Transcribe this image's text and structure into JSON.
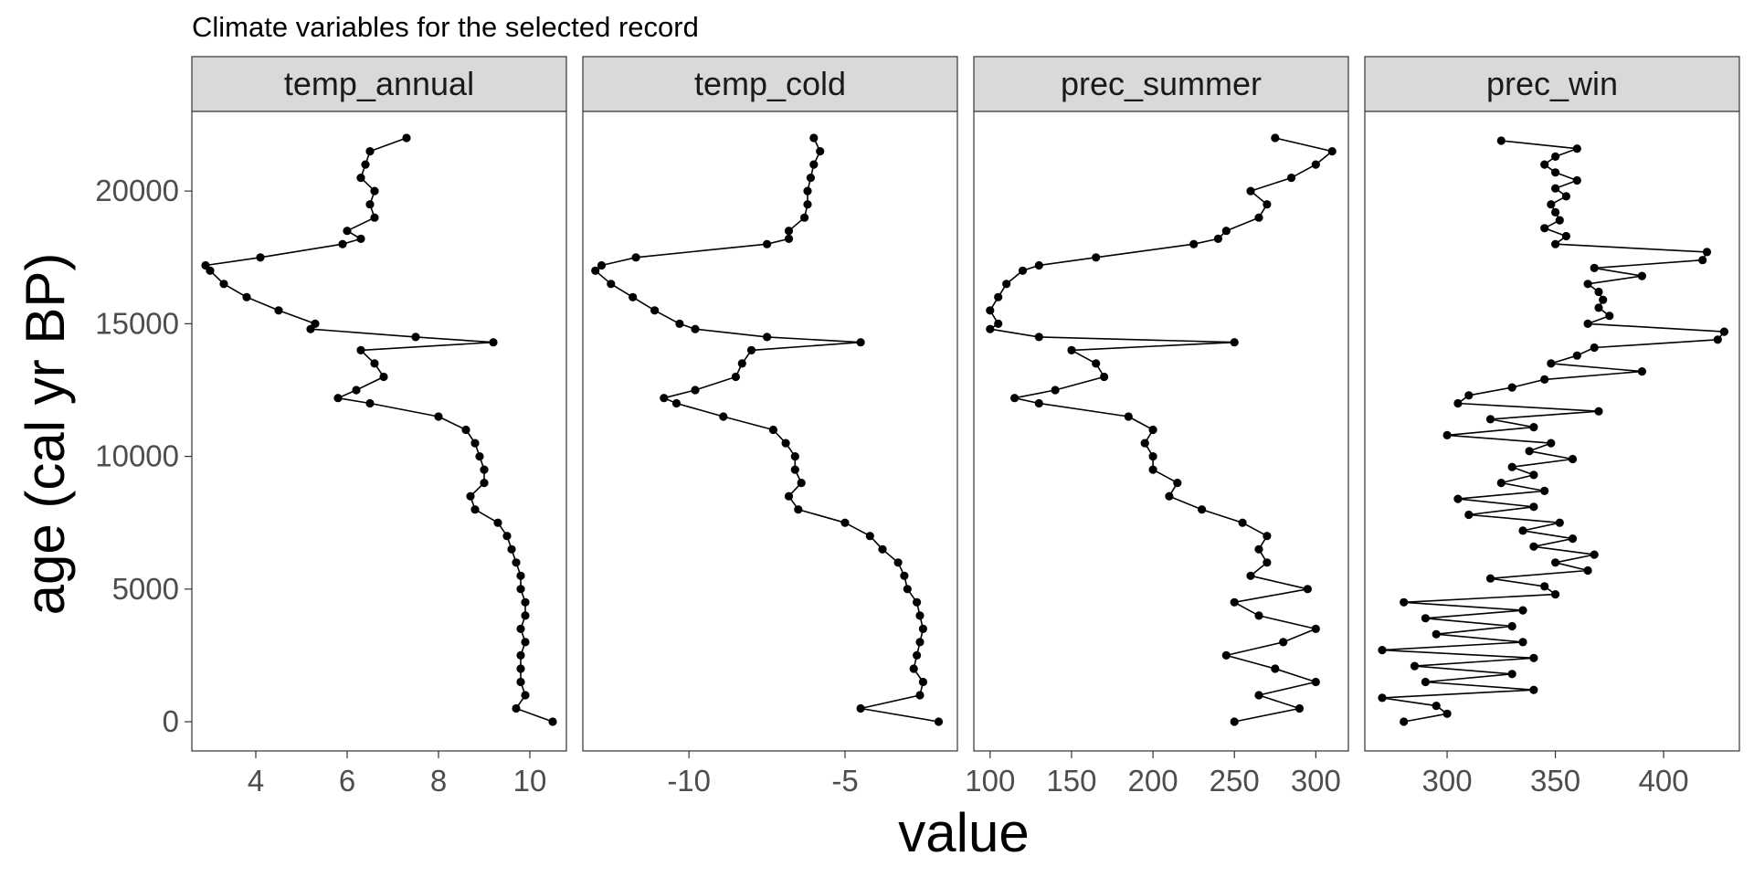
{
  "chart_data": {
    "type": "line",
    "title": "Climate variables for the selected record",
    "xlabel": "value",
    "ylabel": "age (cal yr BP)",
    "y_reversed": true,
    "ylim": [
      23000,
      -1100
    ],
    "yticks": [
      0,
      5000,
      10000,
      15000,
      20000
    ],
    "grid": false,
    "markers": true,
    "panels": [
      {
        "name": "temp_annual",
        "xlim": [
          2.6,
          10.8
        ],
        "xticks": [
          4,
          6,
          8,
          10
        ],
        "ages": [
          0,
          500,
          1000,
          1500,
          2000,
          2500,
          3000,
          3500,
          4000,
          4500,
          5000,
          5500,
          6000,
          6500,
          7000,
          7500,
          8000,
          8500,
          9000,
          9500,
          10000,
          10500,
          11000,
          11500,
          12000,
          12200,
          12500,
          13000,
          13500,
          14000,
          14300,
          14500,
          14800,
          15000,
          15500,
          16000,
          16500,
          17000,
          17200,
          17500,
          18000,
          18200,
          18500,
          19000,
          19500,
          20000,
          20500,
          21000,
          21500,
          22000
        ],
        "values": [
          10.5,
          9.7,
          9.9,
          9.8,
          9.8,
          9.8,
          9.9,
          9.8,
          9.9,
          9.9,
          9.8,
          9.8,
          9.7,
          9.6,
          9.5,
          9.3,
          8.8,
          8.7,
          9.0,
          9.0,
          8.9,
          8.8,
          8.6,
          8.0,
          6.5,
          5.8,
          6.2,
          6.8,
          6.6,
          6.3,
          9.2,
          7.5,
          5.2,
          5.3,
          4.5,
          3.8,
          3.3,
          3.0,
          2.9,
          4.1,
          5.9,
          6.3,
          6.0,
          6.6,
          6.5,
          6.6,
          6.3,
          6.4,
          6.5,
          7.3
        ]
      },
      {
        "name": "temp_cold",
        "xlim": [
          -13.4,
          -1.4
        ],
        "xticks": [
          -10,
          -5
        ],
        "ages": [
          0,
          500,
          1000,
          1500,
          2000,
          2500,
          3000,
          3500,
          4000,
          4500,
          5000,
          5500,
          6000,
          6500,
          7000,
          7500,
          8000,
          8500,
          9000,
          9500,
          10000,
          10500,
          11000,
          11500,
          12000,
          12200,
          12500,
          13000,
          13500,
          14000,
          14300,
          14500,
          14800,
          15000,
          15500,
          16000,
          16500,
          17000,
          17200,
          17500,
          18000,
          18200,
          18500,
          19000,
          19500,
          20000,
          20500,
          21000,
          21500,
          22000
        ],
        "values": [
          -2.0,
          -4.5,
          -2.6,
          -2.5,
          -2.8,
          -2.7,
          -2.6,
          -2.5,
          -2.6,
          -2.7,
          -3.0,
          -3.1,
          -3.3,
          -3.8,
          -4.2,
          -5.0,
          -6.5,
          -6.8,
          -6.4,
          -6.6,
          -6.6,
          -6.9,
          -7.3,
          -8.9,
          -10.4,
          -10.8,
          -9.8,
          -8.5,
          -8.3,
          -8.0,
          -4.5,
          -7.5,
          -9.8,
          -10.3,
          -11.1,
          -11.8,
          -12.5,
          -13.0,
          -12.8,
          -11.7,
          -7.5,
          -6.8,
          -6.8,
          -6.3,
          -6.2,
          -6.2,
          -6.1,
          -6.0,
          -5.8,
          -6.0
        ]
      },
      {
        "name": "prec_summer",
        "xlim": [
          90,
          320
        ],
        "xticks": [
          100,
          150,
          200,
          250,
          300
        ],
        "ages": [
          0,
          500,
          1000,
          1500,
          2000,
          2500,
          3000,
          3500,
          4000,
          4500,
          5000,
          5500,
          6000,
          6500,
          7000,
          7500,
          8000,
          8500,
          9000,
          9500,
          10000,
          10500,
          11000,
          11500,
          12000,
          12200,
          12500,
          13000,
          13500,
          14000,
          14300,
          14500,
          14800,
          15000,
          15500,
          16000,
          16500,
          17000,
          17200,
          17500,
          18000,
          18200,
          18500,
          19000,
          19500,
          20000,
          20500,
          21000,
          21500,
          22000
        ],
        "values": [
          250,
          290,
          265,
          300,
          275,
          245,
          280,
          300,
          265,
          250,
          295,
          260,
          270,
          265,
          270,
          255,
          230,
          210,
          215,
          200,
          200,
          195,
          200,
          185,
          130,
          115,
          140,
          170,
          165,
          150,
          250,
          130,
          100,
          105,
          100,
          105,
          110,
          120,
          130,
          165,
          225,
          240,
          245,
          265,
          270,
          260,
          285,
          300,
          310,
          275
        ]
      },
      {
        "name": "prec_win",
        "xlim": [
          262,
          435
        ],
        "xticks": [
          300,
          350,
          400
        ],
        "ages": [
          0,
          300,
          600,
          900,
          1200,
          1500,
          1800,
          2100,
          2400,
          2700,
          3000,
          3300,
          3600,
          3900,
          4200,
          4500,
          4800,
          5100,
          5400,
          5700,
          6000,
          6300,
          6600,
          6900,
          7200,
          7500,
          7800,
          8100,
          8400,
          8700,
          9000,
          9300,
          9600,
          9900,
          10200,
          10500,
          10800,
          11100,
          11400,
          11700,
          12000,
          12300,
          12600,
          12900,
          13200,
          13500,
          13800,
          14100,
          14400,
          14700,
          15000,
          15300,
          15600,
          15900,
          16200,
          16500,
          16800,
          17100,
          17400,
          17700,
          18000,
          18300,
          18600,
          18900,
          19200,
          19500,
          19800,
          20100,
          20400,
          20700,
          21000,
          21300,
          21600,
          21900
        ],
        "values": [
          280,
          300,
          295,
          270,
          340,
          290,
          330,
          285,
          340,
          270,
          335,
          295,
          330,
          290,
          335,
          280,
          350,
          345,
          320,
          365,
          350,
          368,
          340,
          358,
          335,
          352,
          310,
          340,
          305,
          345,
          325,
          340,
          330,
          358,
          338,
          348,
          300,
          340,
          320,
          370,
          305,
          310,
          330,
          345,
          390,
          348,
          360,
          368,
          425,
          428,
          365,
          375,
          370,
          372,
          370,
          365,
          390,
          368,
          418,
          420,
          350,
          355,
          345,
          352,
          350,
          348,
          355,
          350,
          360,
          350,
          345,
          350,
          360,
          325
        ]
      }
    ]
  }
}
